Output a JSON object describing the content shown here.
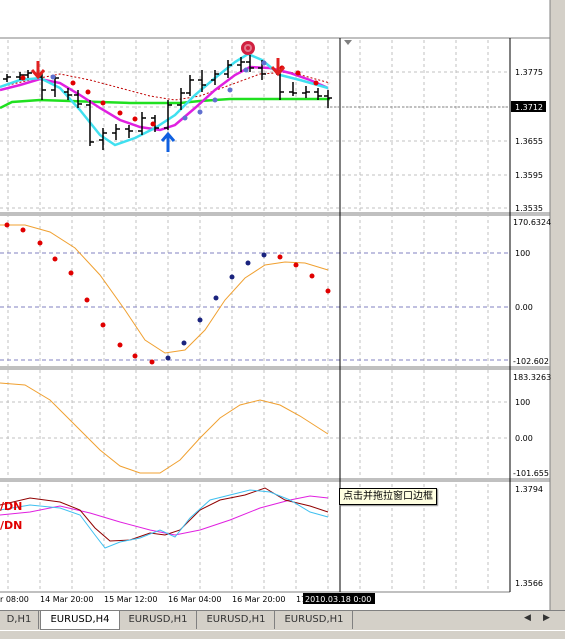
{
  "chart": {
    "price_labels": [
      "1.3775",
      "1.3655",
      "1.3595",
      "1.3535"
    ],
    "current_price": "1.3712",
    "osc1_labels": [
      "170.6324",
      "100",
      "0.00",
      "-102.602"
    ],
    "osc2_labels": [
      "183.3263",
      "100",
      "0.00",
      "-101.655"
    ],
    "osc3_labels": [
      "1.3794",
      "1.3566"
    ],
    "legend_text": [
      "/DN",
      "/DN"
    ],
    "time_labels": [
      "r 08:00",
      "14 Mar 20:00",
      "15 Mar 12:00",
      "16 Mar 04:00",
      "16 Mar 20:00",
      "17"
    ],
    "cursor_time": "2010.03.18 0:00",
    "colors": {
      "bg": "#ffffff",
      "grid": "#c0c0c0",
      "bull": "#ff0000",
      "bear": "#0000ff",
      "magenta": "#e020e0",
      "cyan": "#40e0f0",
      "green": "#20e020",
      "orange": "#f0a030",
      "navy": "#1a237e"
    }
  },
  "tooltip": "点击并拖拉窗口边框",
  "tabs": [
    "D,H1",
    "EURUSD,H4",
    "EURUSD,H1",
    "EURUSD,H1",
    "EURUSD,H1"
  ]
}
